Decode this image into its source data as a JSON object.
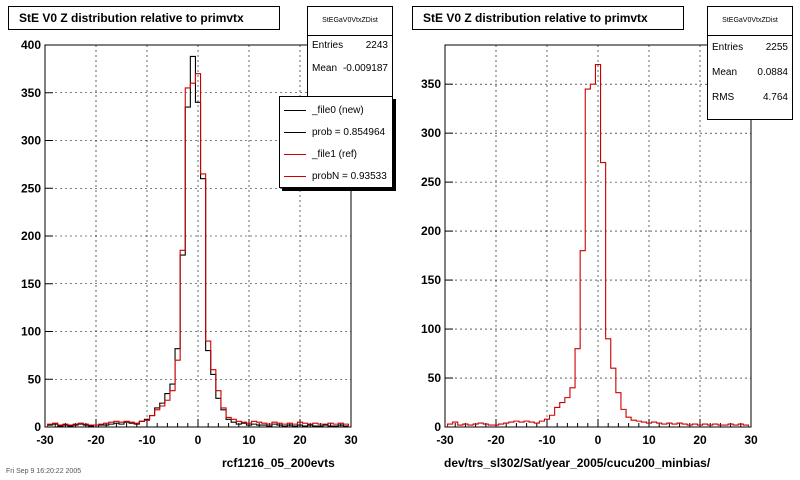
{
  "footer_text": "Fri Sep  9 16:20:22 2005",
  "legend": {
    "entries": [
      {
        "label": "_file0 (new)",
        "color": "#000000"
      },
      {
        "label": "prob = 0.854964",
        "color": "#000000"
      },
      {
        "label": "_file1 (ref)",
        "color": "#cc0000"
      },
      {
        "label": "probN = 0.93533",
        "color": "#cc0000"
      }
    ]
  },
  "chart_data": [
    {
      "type": "line",
      "title": "StE V0 Z distribution relative to primvtx",
      "xlabel": "rcf1216_05_200evts",
      "ylabel": "",
      "xlim": [
        -30,
        30
      ],
      "ylim": [
        0,
        400
      ],
      "xticks": [
        -30,
        -20,
        -10,
        0,
        10,
        20,
        30
      ],
      "yticks": [
        0,
        50,
        100,
        150,
        200,
        250,
        300,
        350,
        400
      ],
      "grid": true,
      "stats": {
        "name": "StEGaV0VtxZDist",
        "entries_label": "Entries",
        "entries": "2243",
        "mean_label": "Mean",
        "mean": "-0.009187"
      },
      "x": [
        -29,
        -28,
        -27,
        -26,
        -25,
        -24,
        -23,
        -22,
        -21,
        -20,
        -19,
        -18,
        -17,
        -16,
        -15,
        -14,
        -13,
        -12,
        -11,
        -10,
        -9,
        -8,
        -7,
        -6,
        -5,
        -4,
        -3,
        -2,
        -1,
        0,
        1,
        2,
        3,
        4,
        5,
        6,
        7,
        8,
        9,
        10,
        11,
        12,
        13,
        14,
        15,
        16,
        17,
        18,
        19,
        20,
        21,
        22,
        23,
        24,
        25,
        26,
        27,
        28,
        29
      ],
      "series": [
        {
          "name": "_file0 (new)",
          "color": "#000000",
          "values": [
            2,
            3,
            1,
            2,
            1,
            2,
            3,
            2,
            1,
            0,
            2,
            2,
            3,
            4,
            3,
            5,
            4,
            3,
            6,
            8,
            12,
            20,
            25,
            35,
            45,
            82,
            180,
            335,
            388,
            340,
            260,
            80,
            55,
            30,
            18,
            8,
            5,
            3,
            4,
            2,
            3,
            2,
            2,
            1,
            3,
            2,
            1,
            2,
            1,
            2,
            1,
            2,
            1,
            1,
            2,
            1,
            1,
            2,
            1
          ]
        },
        {
          "name": "_file1 (ref)",
          "color": "#cc0000",
          "values": [
            3,
            4,
            2,
            3,
            2,
            3,
            4,
            3,
            2,
            2,
            3,
            4,
            5,
            6,
            5,
            6,
            5,
            4,
            6,
            7,
            12,
            18,
            22,
            28,
            38,
            70,
            185,
            355,
            360,
            370,
            265,
            90,
            60,
            38,
            20,
            10,
            8,
            6,
            5,
            4,
            6,
            5,
            4,
            3,
            5,
            4,
            3,
            4,
            3,
            5,
            4,
            3,
            4,
            3,
            3,
            4,
            3,
            4,
            3
          ]
        }
      ]
    },
    {
      "type": "line",
      "title": "StE V0 Z distribution relative to primvtx",
      "xlabel": "dev/trs_sl302/Sat/year_2005/cucu200_minbias/",
      "ylabel": "",
      "xlim": [
        -30,
        30
      ],
      "ylim": [
        0,
        390
      ],
      "xticks": [
        -30,
        -20,
        -10,
        0,
        10,
        20,
        30
      ],
      "yticks": [
        0,
        50,
        100,
        150,
        200,
        250,
        300,
        350
      ],
      "grid": true,
      "stats": {
        "name": "StEGaV0VtxZDist",
        "entries_label": "Entries",
        "entries": "2255",
        "mean_label": "Mean",
        "mean": "0.0884",
        "rms_label": "RMS",
        "rms": "4.764"
      },
      "x": [
        -29,
        -28,
        -27,
        -26,
        -25,
        -24,
        -23,
        -22,
        -21,
        -20,
        -19,
        -18,
        -17,
        -16,
        -15,
        -14,
        -13,
        -12,
        -11,
        -10,
        -9,
        -8,
        -7,
        -6,
        -5,
        -4,
        -3,
        -2,
        -1,
        0,
        1,
        2,
        3,
        4,
        5,
        6,
        7,
        8,
        9,
        10,
        11,
        12,
        13,
        14,
        15,
        16,
        17,
        18,
        19,
        20,
        21,
        22,
        23,
        24,
        25,
        26,
        27,
        28,
        29
      ],
      "series": [
        {
          "name": "",
          "color": "#cc0000",
          "values": [
            3,
            5,
            2,
            3,
            2,
            3,
            4,
            3,
            2,
            2,
            3,
            4,
            5,
            6,
            5,
            6,
            5,
            4,
            6,
            8,
            12,
            20,
            25,
            30,
            40,
            80,
            180,
            345,
            350,
            370,
            270,
            90,
            60,
            35,
            18,
            10,
            7,
            6,
            5,
            4,
            5,
            4,
            3,
            4,
            3,
            4,
            3,
            2,
            3,
            2,
            3,
            2,
            3,
            2,
            2,
            3,
            2,
            3,
            2
          ]
        }
      ]
    }
  ]
}
